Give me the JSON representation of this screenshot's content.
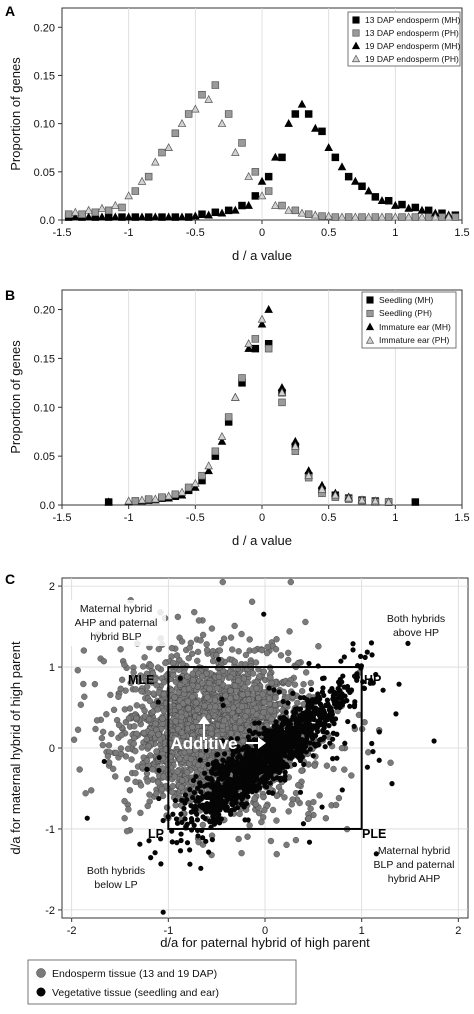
{
  "colors": {
    "black_marker": "#000000",
    "gray_marker": "#9a9a9a",
    "light_marker": "#d2d2d2",
    "grid": "#d9d9d9",
    "endosperm_dot": "#7a7a7a",
    "vegetative_dot": "#050505"
  },
  "chart_data": [
    {
      "panel": "A",
      "type": "scatter",
      "xlabel": "d / a value",
      "ylabel": "Proportion of genes",
      "xlim": [
        -1.5,
        1.5
      ],
      "ylim": [
        0,
        0.22
      ],
      "x_ticks": [
        "-1.5",
        "-1",
        "-0.5",
        "0",
        "0.5",
        "1",
        "1.5"
      ],
      "y_ticks": [
        "0.0",
        "0.05",
        "0.10",
        "0.15",
        "0.20"
      ],
      "legend_position": "top-right",
      "series": [
        {
          "name": "13 DAP endosperm (MH)",
          "marker": "square",
          "fill": "black",
          "points": [
            [
              -1.45,
              0.003
            ],
            [
              -1.35,
              0.003
            ],
            [
              -1.25,
              0.003
            ],
            [
              -1.15,
              0.003
            ],
            [
              -1.05,
              0.003
            ],
            [
              -0.95,
              0.003
            ],
            [
              -0.85,
              0.003
            ],
            [
              -0.75,
              0.003
            ],
            [
              -0.65,
              0.003
            ],
            [
              -0.55,
              0.003
            ],
            [
              -0.45,
              0.006
            ],
            [
              -0.35,
              0.008
            ],
            [
              -0.25,
              0.01
            ],
            [
              -0.15,
              0.015
            ],
            [
              -0.05,
              0.025
            ],
            [
              0.05,
              0.045
            ],
            [
              0.15,
              0.065
            ],
            [
              0.25,
              0.11
            ],
            [
              0.35,
              0.11
            ],
            [
              0.45,
              0.092
            ],
            [
              0.55,
              0.065
            ],
            [
              0.65,
              0.045
            ],
            [
              0.75,
              0.035
            ],
            [
              0.85,
              0.024
            ],
            [
              0.95,
              0.02
            ],
            [
              1.05,
              0.016
            ],
            [
              1.15,
              0.013
            ],
            [
              1.25,
              0.01
            ],
            [
              1.35,
              0.007
            ],
            [
              1.45,
              0.005
            ]
          ]
        },
        {
          "name": "13 DAP endosperm (PH)",
          "marker": "square",
          "fill": "gray",
          "points": [
            [
              -1.45,
              0.006
            ],
            [
              -1.35,
              0.006
            ],
            [
              -1.25,
              0.008
            ],
            [
              -1.15,
              0.01
            ],
            [
              -1.05,
              0.013
            ],
            [
              -0.95,
              0.03
            ],
            [
              -0.85,
              0.045
            ],
            [
              -0.75,
              0.07
            ],
            [
              -0.65,
              0.09
            ],
            [
              -0.55,
              0.11
            ],
            [
              -0.45,
              0.13
            ],
            [
              -0.35,
              0.14
            ],
            [
              -0.25,
              0.11
            ],
            [
              -0.15,
              0.08
            ],
            [
              -0.05,
              0.05
            ],
            [
              0.05,
              0.03
            ],
            [
              0.15,
              0.015
            ],
            [
              0.25,
              0.01
            ],
            [
              0.35,
              0.006
            ],
            [
              0.45,
              0.004
            ],
            [
              0.55,
              0.003
            ],
            [
              0.65,
              0.003
            ],
            [
              0.75,
              0.003
            ],
            [
              0.85,
              0.003
            ],
            [
              0.95,
              0.003
            ],
            [
              1.05,
              0.003
            ],
            [
              1.15,
              0.003
            ],
            [
              1.25,
              0.003
            ],
            [
              1.35,
              0.003
            ],
            [
              1.45,
              0.003
            ]
          ]
        },
        {
          "name": "19 DAP endosperm (MH)",
          "marker": "triangle",
          "fill": "black",
          "points": [
            [
              -1.4,
              0.003
            ],
            [
              -1.3,
              0.003
            ],
            [
              -1.2,
              0.003
            ],
            [
              -1.1,
              0.003
            ],
            [
              -1.0,
              0.003
            ],
            [
              -0.9,
              0.003
            ],
            [
              -0.8,
              0.003
            ],
            [
              -0.7,
              0.003
            ],
            [
              -0.6,
              0.003
            ],
            [
              -0.5,
              0.004
            ],
            [
              -0.4,
              0.005
            ],
            [
              -0.3,
              0.007
            ],
            [
              -0.2,
              0.01
            ],
            [
              -0.1,
              0.015
            ],
            [
              0.0,
              0.04
            ],
            [
              0.1,
              0.065
            ],
            [
              0.2,
              0.1
            ],
            [
              0.3,
              0.12
            ],
            [
              0.4,
              0.095
            ],
            [
              0.5,
              0.075
            ],
            [
              0.6,
              0.055
            ],
            [
              0.7,
              0.04
            ],
            [
              0.8,
              0.03
            ],
            [
              0.9,
              0.02
            ],
            [
              1.0,
              0.015
            ],
            [
              1.1,
              0.012
            ],
            [
              1.2,
              0.01
            ],
            [
              1.3,
              0.007
            ],
            [
              1.4,
              0.005
            ]
          ]
        },
        {
          "name": "19 DAP endosperm (PH)",
          "marker": "triangle",
          "fill": "light",
          "points": [
            [
              -1.4,
              0.008
            ],
            [
              -1.3,
              0.01
            ],
            [
              -1.2,
              0.012
            ],
            [
              -1.1,
              0.015
            ],
            [
              -1.0,
              0.025
            ],
            [
              -0.9,
              0.04
            ],
            [
              -0.8,
              0.06
            ],
            [
              -0.7,
              0.075
            ],
            [
              -0.6,
              0.1
            ],
            [
              -0.5,
              0.115
            ],
            [
              -0.4,
              0.125
            ],
            [
              -0.3,
              0.1
            ],
            [
              -0.2,
              0.07
            ],
            [
              -0.1,
              0.045
            ],
            [
              0.0,
              0.025
            ],
            [
              0.1,
              0.015
            ],
            [
              0.2,
              0.01
            ],
            [
              0.3,
              0.007
            ],
            [
              0.4,
              0.005
            ],
            [
              0.5,
              0.004
            ],
            [
              0.6,
              0.003
            ],
            [
              0.7,
              0.003
            ],
            [
              0.8,
              0.003
            ],
            [
              0.9,
              0.003
            ],
            [
              1.0,
              0.003
            ],
            [
              1.1,
              0.003
            ],
            [
              1.2,
              0.003
            ],
            [
              1.3,
              0.003
            ],
            [
              1.4,
              0.003
            ]
          ]
        }
      ]
    },
    {
      "panel": "B",
      "type": "scatter",
      "xlabel": "d / a value",
      "ylabel": "Proportion of genes",
      "xlim": [
        -1.5,
        1.5
      ],
      "ylim": [
        0,
        0.22
      ],
      "x_ticks": [
        "-1.5",
        "-1",
        "-0.5",
        "0",
        "0.5",
        "1",
        "1.5"
      ],
      "y_ticks": [
        "0.0",
        "0.05",
        "0.10",
        "0.15",
        "0.20"
      ],
      "legend_position": "top-right",
      "series": [
        {
          "name": "Seedling (MH)",
          "marker": "square",
          "fill": "black",
          "points": [
            [
              -1.15,
              0.003
            ],
            [
              -0.95,
              0.004
            ],
            [
              -0.85,
              0.005
            ],
            [
              -0.75,
              0.007
            ],
            [
              -0.65,
              0.009
            ],
            [
              -0.55,
              0.015
            ],
            [
              -0.45,
              0.025
            ],
            [
              -0.35,
              0.05
            ],
            [
              -0.25,
              0.085
            ],
            [
              -0.15,
              0.125
            ],
            [
              -0.05,
              0.16
            ],
            [
              0.05,
              0.165
            ],
            [
              0.15,
              0.115
            ],
            [
              0.25,
              0.06
            ],
            [
              0.35,
              0.03
            ],
            [
              0.45,
              0.015
            ],
            [
              0.55,
              0.01
            ],
            [
              0.65,
              0.007
            ],
            [
              0.75,
              0.005
            ],
            [
              0.85,
              0.004
            ],
            [
              0.95,
              0.003
            ],
            [
              1.15,
              0.003
            ]
          ]
        },
        {
          "name": "Seedling (PH)",
          "marker": "square",
          "fill": "gray",
          "points": [
            [
              -0.95,
              0.004
            ],
            [
              -0.85,
              0.006
            ],
            [
              -0.75,
              0.008
            ],
            [
              -0.65,
              0.011
            ],
            [
              -0.55,
              0.018
            ],
            [
              -0.45,
              0.03
            ],
            [
              -0.35,
              0.055
            ],
            [
              -0.25,
              0.09
            ],
            [
              -0.15,
              0.13
            ],
            [
              -0.05,
              0.17
            ],
            [
              0.05,
              0.16
            ],
            [
              0.15,
              0.105
            ],
            [
              0.25,
              0.055
            ],
            [
              0.35,
              0.028
            ],
            [
              0.45,
              0.012
            ],
            [
              0.55,
              0.008
            ],
            [
              0.65,
              0.006
            ],
            [
              0.75,
              0.004
            ],
            [
              0.85,
              0.003
            ],
            [
              0.95,
              0.003
            ]
          ]
        },
        {
          "name": "Immature ear (MH)",
          "marker": "triangle",
          "fill": "black",
          "points": [
            [
              -1.15,
              0.003
            ],
            [
              -1.0,
              0.003
            ],
            [
              -0.9,
              0.004
            ],
            [
              -0.8,
              0.005
            ],
            [
              -0.7,
              0.007
            ],
            [
              -0.6,
              0.01
            ],
            [
              -0.5,
              0.018
            ],
            [
              -0.4,
              0.035
            ],
            [
              -0.3,
              0.065
            ],
            [
              -0.2,
              0.11
            ],
            [
              -0.1,
              0.16
            ],
            [
              0.0,
              0.185
            ],
            [
              0.05,
              0.2
            ],
            [
              0.15,
              0.12
            ],
            [
              0.25,
              0.065
            ],
            [
              0.35,
              0.035
            ],
            [
              0.45,
              0.02
            ],
            [
              0.55,
              0.012
            ],
            [
              0.65,
              0.008
            ],
            [
              0.75,
              0.005
            ],
            [
              0.85,
              0.004
            ],
            [
              0.95,
              0.003
            ]
          ]
        },
        {
          "name": "Immature ear (PH)",
          "marker": "triangle",
          "fill": "light",
          "points": [
            [
              -1.0,
              0.004
            ],
            [
              -0.9,
              0.005
            ],
            [
              -0.8,
              0.006
            ],
            [
              -0.7,
              0.009
            ],
            [
              -0.6,
              0.013
            ],
            [
              -0.5,
              0.022
            ],
            [
              -0.4,
              0.04
            ],
            [
              -0.3,
              0.07
            ],
            [
              -0.2,
              0.11
            ],
            [
              -0.1,
              0.165
            ],
            [
              0.0,
              0.19
            ],
            [
              0.15,
              0.115
            ],
            [
              0.25,
              0.06
            ],
            [
              0.35,
              0.03
            ],
            [
              0.45,
              0.016
            ],
            [
              0.55,
              0.01
            ],
            [
              0.65,
              0.007
            ],
            [
              0.75,
              0.005
            ],
            [
              0.85,
              0.004
            ],
            [
              0.95,
              0.003
            ]
          ]
        }
      ]
    },
    {
      "panel": "C",
      "type": "scatter",
      "xlabel": "d/a for paternal hybrid of high parent",
      "ylabel": "d/a for maternal hybrid of high parent",
      "xlim": [
        -2.1,
        2.1
      ],
      "ylim": [
        -2.1,
        2.1
      ],
      "x_ticks": [
        "-2",
        "-1",
        "0",
        "1",
        "2"
      ],
      "y_ticks": [
        "-2",
        "-1",
        "0",
        "1",
        "2"
      ],
      "legend_position": "below",
      "box": {
        "x": [
          -1,
          1
        ],
        "y": [
          -1,
          1
        ]
      },
      "series": [
        {
          "name": "Endosperm tissue (13 and 19 DAP)",
          "color": "#7a7a7a",
          "n_points": 2600,
          "distribution": "cloud centered near (-0.5, 0.2), wide spread"
        },
        {
          "name": "Vegetative tissue (seedling and ear)",
          "color": "#050505",
          "n_points": 1400,
          "distribution": "elongated along y = x around (0, -0.1)"
        }
      ],
      "labels": {
        "upper_left": [
          "Maternal hybrid",
          "AHP and paternal",
          "hybrid BLP"
        ],
        "upper_right": [
          "Both hybrids",
          "above HP"
        ],
        "lower_left": [
          "Both hybrids",
          "below LP"
        ],
        "lower_right": [
          "Maternal hybrid",
          "BLP and paternal",
          "hybrid AHP"
        ],
        "mle": "MLE",
        "hp": "HP",
        "lp": "LP",
        "ple": "PLE",
        "additive": "Additive"
      }
    }
  ]
}
